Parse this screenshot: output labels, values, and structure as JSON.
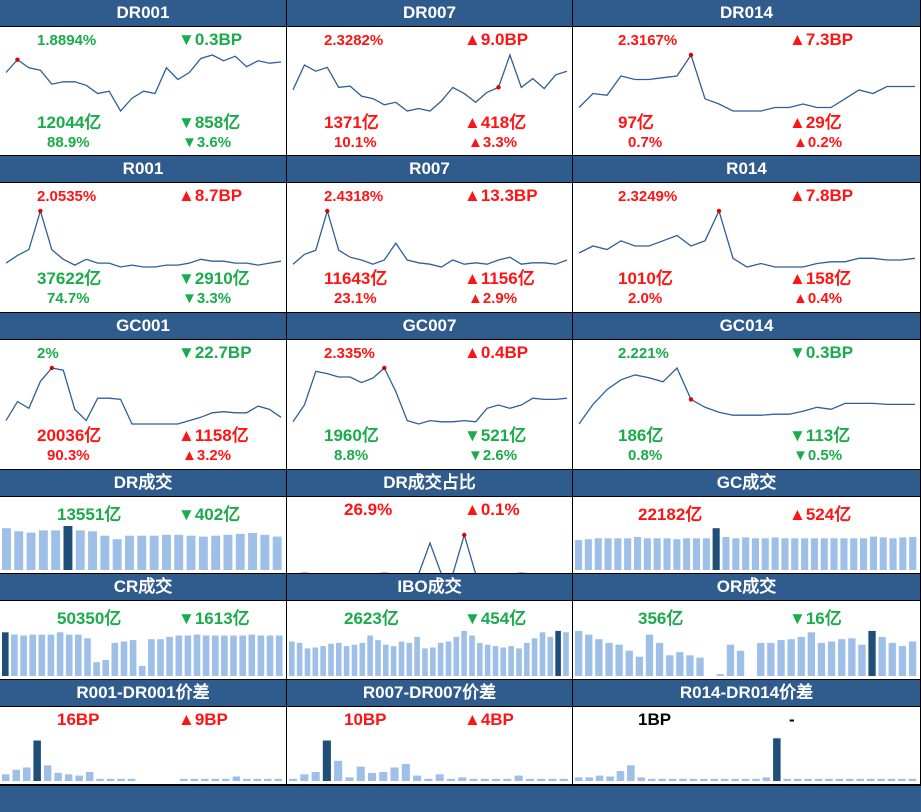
{
  "colors": {
    "header": "#2f5b8d",
    "up": "#ff1414",
    "down": "#1aab4a",
    "line": "#2e5f9a",
    "bar": "#9dbfe8",
    "bar_highlight": "#1f4e79"
  },
  "chart_data": [
    {
      "type": "line",
      "title": "DR001",
      "rate": "1.8894%",
      "rate_color": "g",
      "rate_chg": "▼0.3BP",
      "rate_chg_color": "g",
      "volume": "12044亿",
      "volume_color": "g",
      "volume_chg": "▼858亿",
      "volume_chg_color": "g",
      "share": "88.9%",
      "share_color": "g",
      "share_chg": "▼3.6%",
      "share_chg_color": "g",
      "values": [
        1.78,
        1.89,
        1.82,
        1.8,
        1.68,
        1.7,
        1.7,
        1.67,
        1.6,
        1.62,
        1.45,
        1.56,
        1.62,
        1.6,
        1.82,
        1.72,
        1.78,
        1.9,
        1.93,
        1.88,
        1.92,
        1.83,
        1.88,
        1.86,
        1.87
      ],
      "marker": 1
    },
    {
      "type": "line",
      "title": "DR007",
      "rate": "2.3282%",
      "rate_color": "r",
      "rate_chg": "▲9.0BP",
      "rate_chg_color": "r",
      "volume": "1371亿",
      "volume_color": "r",
      "volume_chg": "▲418亿",
      "volume_chg_color": "r",
      "share": "10.1%",
      "share_color": "r",
      "share_chg": "▲3.3%",
      "share_chg_color": "r",
      "values": [
        2.05,
        2.25,
        2.2,
        2.23,
        2.07,
        2.08,
        2.0,
        1.98,
        1.93,
        1.95,
        1.88,
        1.9,
        1.88,
        1.96,
        2.07,
        2.02,
        1.95,
        2.03,
        2.07,
        2.33,
        2.07,
        2.14,
        2.06,
        2.17,
        2.2
      ],
      "marker": 18
    },
    {
      "type": "line",
      "title": "DR014",
      "rate": "2.3167%",
      "rate_color": "r",
      "rate_chg": "▲7.3BP",
      "rate_chg_color": "r",
      "volume": "97亿",
      "volume_color": "r",
      "volume_chg": "▲29亿",
      "volume_chg_color": "r",
      "share": "0.7%",
      "share_color": "r",
      "share_chg": "▲0.2%",
      "share_chg_color": "r",
      "values": [
        2.0,
        2.08,
        2.07,
        2.18,
        2.16,
        2.16,
        2.17,
        2.18,
        2.3,
        2.05,
        2.02,
        1.98,
        1.98,
        1.98,
        2.0,
        2.0,
        2.02,
        2.0,
        2.0,
        2.05,
        2.1,
        2.08,
        2.12,
        2.12,
        2.12
      ],
      "marker": 8
    },
    {
      "type": "line",
      "title": "R001",
      "rate": "2.0535%",
      "rate_color": "r",
      "rate_chg": "▲8.7BP",
      "rate_chg_color": "r",
      "volume": "37622亿",
      "volume_color": "g",
      "volume_chg": "▼2910亿",
      "volume_chg_color": "g",
      "share": "74.7%",
      "share_color": "g",
      "share_chg": "▼3.3%",
      "share_chg_color": "g",
      "values": [
        1.78,
        1.82,
        1.85,
        2.05,
        1.85,
        1.8,
        1.77,
        1.8,
        1.78,
        1.78,
        1.76,
        1.77,
        1.76,
        1.76,
        1.77,
        1.77,
        1.78,
        1.8,
        1.79,
        1.79,
        1.78,
        1.78,
        1.77,
        1.78,
        1.79
      ],
      "marker": 3
    },
    {
      "type": "line",
      "title": "R007",
      "rate": "2.4318%",
      "rate_color": "r",
      "rate_chg": "▲13.3BP",
      "rate_chg_color": "r",
      "volume": "11643亿",
      "volume_color": "r",
      "volume_chg": "▲1156亿",
      "volume_chg_color": "r",
      "share": "23.1%",
      "share_color": "r",
      "share_chg": "▲2.9%",
      "share_chg_color": "r",
      "values": [
        2.05,
        2.12,
        2.15,
        2.43,
        2.15,
        2.1,
        2.08,
        2.05,
        2.08,
        2.2,
        2.08,
        2.06,
        2.05,
        2.03,
        2.08,
        2.05,
        2.06,
        2.05,
        2.08,
        2.1,
        2.05,
        2.06,
        2.06,
        2.05,
        2.08
      ],
      "marker": 3
    },
    {
      "type": "line",
      "title": "R014",
      "rate": "2.3249%",
      "rate_color": "r",
      "rate_chg": "▲7.8BP",
      "rate_chg_color": "r",
      "volume": "1010亿",
      "volume_color": "r",
      "volume_chg": "▲158亿",
      "volume_chg_color": "r",
      "share": "2.0%",
      "share_color": "r",
      "share_chg": "▲0.4%",
      "share_chg_color": "r",
      "values": [
        2.08,
        2.12,
        2.1,
        2.15,
        2.12,
        2.12,
        2.15,
        2.18,
        2.12,
        2.15,
        2.32,
        2.05,
        2.0,
        2.02,
        2.0,
        2.0,
        2.0,
        2.02,
        2.03,
        2.03,
        2.05,
        2.05,
        2.04,
        2.04,
        2.05
      ],
      "marker": 10
    },
    {
      "type": "line",
      "title": "GC001",
      "rate": "2%",
      "rate_color": "g",
      "rate_chg": "▼22.7BP",
      "rate_chg_color": "g",
      "volume": "20036亿",
      "volume_color": "r",
      "volume_chg": "▲1158亿",
      "volume_chg_color": "r",
      "share": "90.3%",
      "share_color": "r",
      "share_chg": "▲3.2%",
      "share_chg_color": "r",
      "values": [
        1.55,
        1.72,
        1.66,
        1.9,
        2.02,
        2.0,
        1.65,
        1.55,
        1.75,
        1.75,
        1.74,
        1.52,
        1.52,
        1.52,
        1.52,
        1.52,
        1.55,
        1.58,
        1.62,
        1.63,
        1.62,
        1.62,
        1.68,
        1.65,
        1.58
      ],
      "marker": 4
    },
    {
      "type": "line",
      "title": "GC007",
      "rate": "2.335%",
      "rate_color": "r",
      "rate_chg": "▲0.4BP",
      "rate_chg_color": "r",
      "volume": "1960亿",
      "volume_color": "g",
      "volume_chg": "▼521亿",
      "volume_chg_color": "g",
      "share": "8.8%",
      "share_color": "g",
      "share_chg": "▼2.6%",
      "share_chg_color": "g",
      "values": [
        1.85,
        2.0,
        2.3,
        2.28,
        2.25,
        2.25,
        2.2,
        2.24,
        2.33,
        2.12,
        1.86,
        1.83,
        1.86,
        1.85,
        1.85,
        1.86,
        1.85,
        1.97,
        2.0,
        1.97,
        2.0,
        2.06,
        2.05,
        2.05,
        2.06
      ],
      "marker": 8
    },
    {
      "type": "line",
      "title": "GC014",
      "rate": "2.221%",
      "rate_color": "g",
      "rate_chg": "▼0.3BP",
      "rate_chg_color": "g",
      "volume": "186亿",
      "volume_color": "g",
      "volume_chg": "▼113亿",
      "volume_chg_color": "g",
      "share": "0.8%",
      "share_color": "g",
      "share_chg": "▼0.5%",
      "share_chg_color": "g",
      "values": [
        1.75,
        1.95,
        2.1,
        2.2,
        2.25,
        2.22,
        2.18,
        2.32,
        2.0,
        1.92,
        1.87,
        1.84,
        1.84,
        1.84,
        1.85,
        1.85,
        1.88,
        1.92,
        1.9,
        1.96,
        1.96,
        1.96,
        1.95,
        1.95,
        1.95
      ],
      "marker": 8
    },
    {
      "type": "bar",
      "title": "DR成交",
      "value1": "13551亿",
      "value1_color": "g",
      "value2": "▼402亿",
      "value2_color": "g",
      "values": [
        0.95,
        0.88,
        0.85,
        0.9,
        0.9,
        1.0,
        0.9,
        0.88,
        0.78,
        0.7,
        0.78,
        0.78,
        0.78,
        0.8,
        0.8,
        0.78,
        0.76,
        0.78,
        0.8,
        0.82,
        0.84,
        0.8,
        0.76
      ],
      "highlight": 5
    },
    {
      "type": "line",
      "title": "DR成交占比",
      "value1": "26.9%",
      "value1_color": "r",
      "value2": "▲0.1%",
      "value2_color": "r",
      "values": [
        0.1,
        0.12,
        0.1,
        0.09,
        0.09,
        0.08,
        0.08,
        0.1,
        0.12,
        0.1,
        0.09,
        0.1,
        0.8,
        0.1,
        0.1,
        0.98,
        0.1,
        0.1,
        0.09,
        0.1,
        0.12,
        0.1,
        0.09,
        0.1,
        0.08
      ],
      "marker": 15
    },
    {
      "type": "bar",
      "title": "GC成交",
      "value1": "22182亿",
      "value1_color": "r",
      "value2": "▲524亿",
      "value2_color": "r",
      "values": [
        0.68,
        0.7,
        0.72,
        0.72,
        0.72,
        0.72,
        0.75,
        0.72,
        0.72,
        0.72,
        0.7,
        0.72,
        0.72,
        0.72,
        0.95,
        0.75,
        0.72,
        0.74,
        0.72,
        0.72,
        0.74,
        0.72,
        0.72,
        0.72,
        0.72,
        0.72,
        0.72,
        0.72,
        0.72,
        0.72,
        0.76,
        0.74,
        0.72,
        0.74,
        0.75
      ],
      "highlight": 14
    },
    {
      "type": "bar",
      "title": "CR成交",
      "value1": "50350亿",
      "value1_color": "g",
      "value2": "▼1613亿",
      "value2_color": "g",
      "values": [
        0.95,
        0.9,
        0.88,
        0.9,
        0.9,
        0.9,
        0.95,
        0.9,
        0.9,
        0.82,
        0.3,
        0.35,
        0.72,
        0.75,
        0.78,
        0.22,
        0.8,
        0.8,
        0.85,
        0.88,
        0.88,
        0.9,
        0.88,
        0.88,
        0.88,
        0.88,
        0.88,
        0.9,
        0.88,
        0.88,
        0.88
      ],
      "highlight": 0
    },
    {
      "type": "bar",
      "title": "IBO成交",
      "value1": "2623亿",
      "value1_color": "g",
      "value2": "▼454亿",
      "value2_color": "g",
      "values": [
        0.75,
        0.72,
        0.6,
        0.62,
        0.65,
        0.7,
        0.72,
        0.65,
        0.68,
        0.72,
        0.88,
        0.78,
        0.68,
        0.65,
        0.75,
        0.72,
        0.85,
        0.6,
        0.62,
        0.72,
        0.75,
        0.85,
        0.98,
        0.88,
        0.72,
        0.68,
        0.65,
        0.62,
        0.65,
        0.6,
        0.72,
        0.82,
        0.95,
        0.85,
        0.98,
        0.95
      ],
      "highlight": 34
    },
    {
      "type": "bar",
      "title": "OR成交",
      "value1": "356亿",
      "value1_color": "g",
      "value2": "▼16亿",
      "value2_color": "g",
      "values": [
        0.98,
        0.9,
        0.8,
        0.72,
        0.68,
        0.55,
        0.42,
        0.9,
        0.72,
        0.45,
        0.52,
        0.45,
        0.4,
        0.0,
        0.04,
        0.68,
        0.55,
        0.0,
        0.72,
        0.72,
        0.78,
        0.8,
        0.85,
        0.95,
        0.72,
        0.75,
        0.8,
        0.82,
        0.68,
        0.98,
        0.85,
        0.72,
        0.65,
        0.75
      ],
      "highlight": 29
    },
    {
      "type": "bar",
      "title": "R001-DR001价差",
      "value1": "16BP",
      "value1_color": "r",
      "value2": "▲9BP",
      "value2_color": "r",
      "values": [
        0.15,
        0.25,
        0.3,
        0.9,
        0.35,
        0.18,
        0.15,
        0.12,
        0.2,
        0.05,
        0.05,
        0.05,
        0.05,
        0.0,
        0.0,
        0.0,
        0.0,
        0.05,
        0.05,
        0.05,
        0.05,
        0.05,
        0.1,
        0.05,
        0.05,
        0.05,
        0.05
      ],
      "highlight": 3
    },
    {
      "type": "bar",
      "title": "R007-DR007价差",
      "value1": "10BP",
      "value1_color": "r",
      "value2": "▲4BP",
      "value2_color": "r",
      "values": [
        0.05,
        0.15,
        0.2,
        0.9,
        0.45,
        0.08,
        0.32,
        0.18,
        0.2,
        0.3,
        0.38,
        0.12,
        0.05,
        0.15,
        0.05,
        0.08,
        0.05,
        0.05,
        0.05,
        0.05,
        0.12,
        0.05,
        0.05,
        0.05,
        0.05
      ],
      "highlight": 3
    },
    {
      "type": "bar",
      "title": "R014-DR014价差",
      "value1": "1BP",
      "value1_color": "k",
      "value2": "-",
      "value2_color": "k",
      "values": [
        0.08,
        0.08,
        0.12,
        0.1,
        0.22,
        0.35,
        0.08,
        0.05,
        0.05,
        0.05,
        0.05,
        0.05,
        0.05,
        0.05,
        0.05,
        0.05,
        0.05,
        0.05,
        0.08,
        0.95,
        0.05,
        0.05,
        0.05,
        0.05,
        0.05,
        0.05,
        0.05,
        0.05,
        0.05,
        0.05,
        0.05,
        0.05,
        0.05
      ],
      "highlight": 19
    }
  ]
}
